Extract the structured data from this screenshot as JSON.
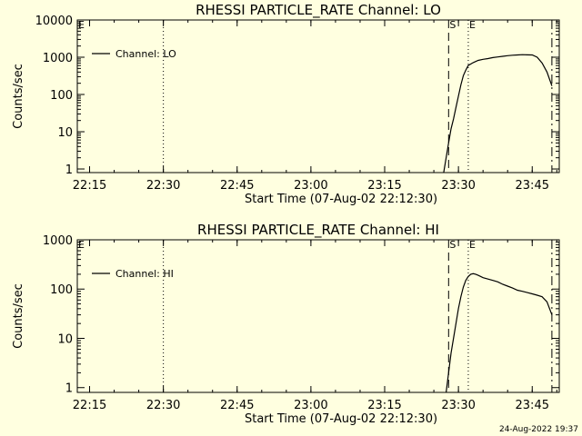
{
  "footer_timestamp": "24-Aug-2022 19:37",
  "chart_data": [
    {
      "type": "line",
      "title": "RHESSI PARTICLE_RATE Channel: LO",
      "xlabel": "Start Time (07-Aug-02 22:12:30)",
      "ylabel": "Counts/sec",
      "y_scale": "log",
      "ylim": [
        0.8,
        10000
      ],
      "xlim": [
        "22:12:30",
        "23:50:30"
      ],
      "x_ticks": [
        "22:15",
        "22:30",
        "22:45",
        "23:00",
        "23:15",
        "23:30",
        "23:45"
      ],
      "y_ticks": [
        "1",
        "10",
        "100",
        "1000",
        "10000"
      ],
      "legend": {
        "position": "top-left",
        "label": "Channel: LO"
      },
      "marker_lines": [
        {
          "label": "E",
          "time": "22:12:30",
          "style": "dashed"
        },
        {
          "label": "",
          "time": "22:30:00",
          "style": "dotted"
        },
        {
          "label": "S",
          "time": "23:28:00",
          "style": "dashed"
        },
        {
          "label": "E",
          "time": "23:32:00",
          "style": "dotted"
        },
        {
          "label": "",
          "time": "23:49:00",
          "style": "dash-dot"
        }
      ],
      "series": [
        {
          "name": "Channel: LO",
          "color": "#000000",
          "x": [
            "23:27:00",
            "23:27:30",
            "23:28:00",
            "23:28:30",
            "23:29:00",
            "23:29:30",
            "23:30:00",
            "23:30:30",
            "23:31:00",
            "23:31:30",
            "23:32:00",
            "23:33:00",
            "23:34:00",
            "23:35:00",
            "23:36:00",
            "23:37:00",
            "23:38:00",
            "23:39:00",
            "23:40:00",
            "23:41:00",
            "23:42:00",
            "23:43:00",
            "23:44:00",
            "23:45:00",
            "23:46:00",
            "23:47:00",
            "23:48:00",
            "23:49:00"
          ],
          "y": [
            0.8,
            2,
            5,
            12,
            22,
            45,
            90,
            180,
            320,
            450,
            600,
            720,
            820,
            880,
            920,
            980,
            1020,
            1060,
            1100,
            1130,
            1150,
            1170,
            1160,
            1150,
            1000,
            700,
            400,
            170
          ]
        }
      ]
    },
    {
      "type": "line",
      "title": "RHESSI PARTICLE_RATE Channel: HI",
      "xlabel": "Start Time (07-Aug-02 22:12:30)",
      "ylabel": "Counts/sec",
      "y_scale": "log",
      "ylim": [
        0.8,
        1000
      ],
      "xlim": [
        "22:12:30",
        "23:50:30"
      ],
      "x_ticks": [
        "22:15",
        "22:30",
        "22:45",
        "23:00",
        "23:15",
        "23:30",
        "23:45"
      ],
      "y_ticks": [
        "1",
        "10",
        "100",
        "1000"
      ],
      "legend": {
        "position": "top-left",
        "label": "Channel: HI"
      },
      "marker_lines": [
        {
          "label": "E",
          "time": "22:12:30",
          "style": "dashed"
        },
        {
          "label": "",
          "time": "22:30:00",
          "style": "dotted"
        },
        {
          "label": "S",
          "time": "23:28:00",
          "style": "dashed"
        },
        {
          "label": "E",
          "time": "23:32:00",
          "style": "dotted"
        },
        {
          "label": "",
          "time": "23:49:00",
          "style": "dash-dot"
        }
      ],
      "series": [
        {
          "name": "Channel: HI",
          "color": "#000000",
          "x": [
            "23:27:30",
            "23:28:00",
            "23:28:30",
            "23:29:00",
            "23:29:30",
            "23:30:00",
            "23:30:30",
            "23:31:00",
            "23:31:30",
            "23:32:00",
            "23:32:30",
            "23:33:00",
            "23:33:30",
            "23:34:00",
            "23:35:00",
            "23:36:00",
            "23:37:00",
            "23:38:00",
            "23:39:00",
            "23:40:00",
            "23:41:00",
            "23:42:00",
            "23:43:00",
            "23:44:00",
            "23:45:00",
            "23:46:00",
            "23:47:00",
            "23:48:00",
            "23:49:00"
          ],
          "y": [
            0.8,
            2,
            5,
            10,
            20,
            40,
            70,
            110,
            150,
            180,
            200,
            205,
            200,
            190,
            170,
            160,
            150,
            140,
            125,
            115,
            105,
            95,
            90,
            85,
            80,
            75,
            70,
            55,
            30
          ]
        }
      ]
    }
  ]
}
